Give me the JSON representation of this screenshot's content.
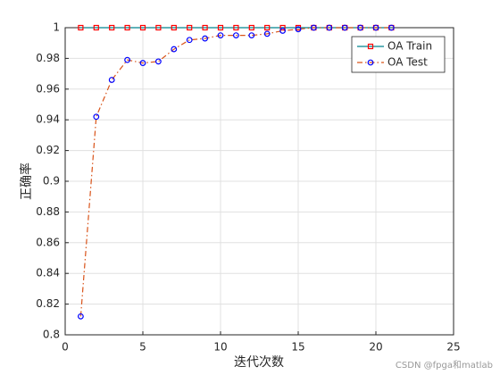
{
  "chart_data": {
    "type": "line",
    "x": [
      1,
      2,
      3,
      4,
      5,
      6,
      7,
      8,
      9,
      10,
      11,
      12,
      13,
      14,
      15,
      16,
      17,
      18,
      19,
      20,
      21
    ],
    "series": [
      {
        "name": "OA Train",
        "color": "#00838f",
        "marker": "square",
        "marker_color": "#ff0000",
        "dash": "solid",
        "values": [
          1,
          1,
          1,
          1,
          1,
          1,
          1,
          1,
          1,
          1,
          1,
          1,
          1,
          1,
          1,
          1,
          1,
          1,
          1,
          1,
          1
        ]
      },
      {
        "name": "OA Test",
        "color": "#d95319",
        "marker": "circle",
        "marker_color": "#0000ff",
        "dash": "dashdot",
        "values": [
          0.812,
          0.942,
          0.966,
          0.979,
          0.977,
          0.978,
          0.986,
          0.992,
          0.993,
          0.995,
          0.995,
          0.995,
          0.996,
          0.998,
          0.999,
          1,
          1,
          1,
          1,
          1,
          1
        ]
      }
    ],
    "xlim": [
      0,
      25
    ],
    "xticks": [
      0,
      5,
      10,
      15,
      20,
      25
    ],
    "ylim": [
      0.8,
      1
    ],
    "yticks": [
      0.8,
      0.82,
      0.84,
      0.86,
      0.88,
      0.9,
      0.92,
      0.94,
      0.96,
      0.98,
      1
    ],
    "xlabel": "迭代次数",
    "ylabel": "正确率",
    "grid": true,
    "legend_position": "northeast",
    "watermark": "CSDN @fpga和matlab"
  }
}
